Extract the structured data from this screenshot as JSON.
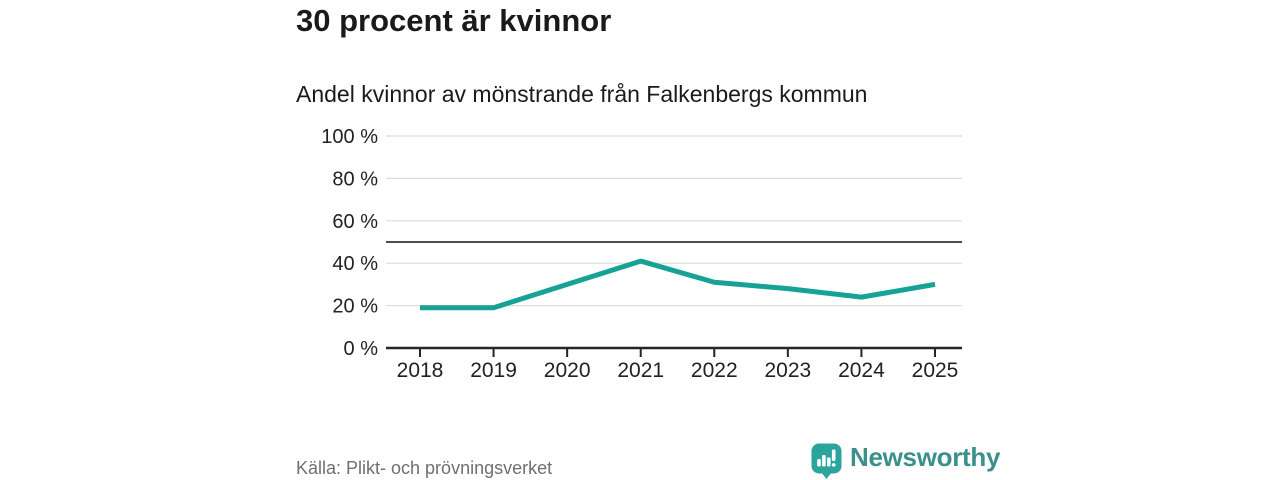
{
  "header": {
    "title": "30 procent är kvinnor",
    "subtitle": "Andel kvinnor av mönstrande från Falkenbergs kommun"
  },
  "chart_data": {
    "type": "line",
    "title": "30 procent är kvinnor",
    "subtitle": "Andel kvinnor av mönstrande från Falkenbergs kommun",
    "categories": [
      "2018",
      "2019",
      "2020",
      "2021",
      "2022",
      "2023",
      "2024",
      "2025"
    ],
    "series": [
      {
        "name": "Andel kvinnor av mönstrande",
        "values": [
          19,
          19,
          30,
          41,
          31,
          28,
          24,
          30
        ]
      }
    ],
    "unit": "%",
    "xlabel": "",
    "ylabel": "",
    "ylim": [
      0,
      100
    ],
    "y_ticks": [
      0,
      20,
      40,
      60,
      80,
      100
    ],
    "y_tick_labels": [
      "0 %",
      "20 %",
      "40 %",
      "60 %",
      "80 %",
      "100 %"
    ],
    "reference_line": 50,
    "grid": true,
    "legend": "none"
  },
  "footer": {
    "source": "Källa: Plikt- och prövningsverket",
    "brand": "Newsworthy"
  },
  "colors": {
    "line": "#16a296",
    "reference_line": "#4d4d4d",
    "grid": "#dcdcdc",
    "axis": "#262626",
    "tick_text": "#222222",
    "text": "#1a1a1a",
    "muted_text": "#6f6f6f",
    "brand_icon": "#2ba59c",
    "brand_text": "#3a908b"
  }
}
